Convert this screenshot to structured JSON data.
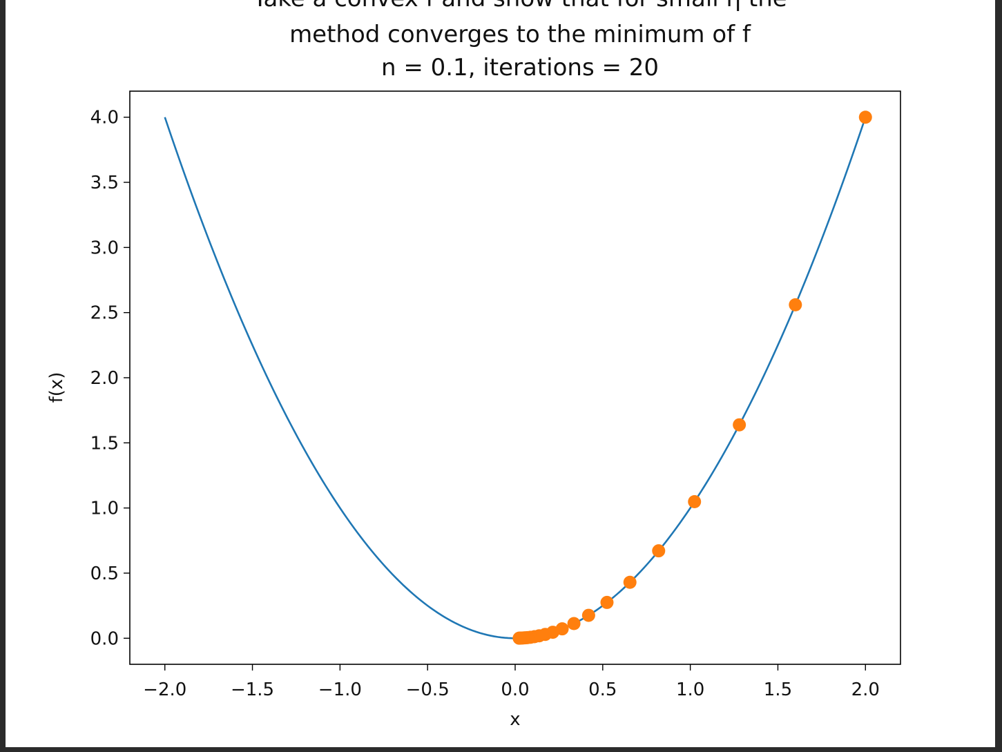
{
  "page": {
    "background": "#2b2b2b",
    "figure_background": "#ffffff"
  },
  "chart_data": {
    "type": "line",
    "title_lines": [
      "Take a convex f and show that for small η the",
      "method converges to the minimum of f",
      "n = 0.1, iterations = 20"
    ],
    "xlabel": "x",
    "ylabel": "f(x)",
    "xlim": [
      -2.2,
      2.2
    ],
    "ylim": [
      -0.2,
      4.2
    ],
    "xticks": [
      -2.0,
      -1.5,
      -1.0,
      -0.5,
      0.0,
      0.5,
      1.0,
      1.5,
      2.0
    ],
    "xtick_labels": [
      "−2.0",
      "−1.5",
      "−1.0",
      "−0.5",
      "0.0",
      "0.5",
      "1.0",
      "1.5",
      "2.0"
    ],
    "yticks": [
      0.0,
      0.5,
      1.0,
      1.5,
      2.0,
      2.5,
      3.0,
      3.5,
      4.0
    ],
    "ytick_labels": [
      "0.0",
      "0.5",
      "1.0",
      "1.5",
      "2.0",
      "2.5",
      "3.0",
      "3.5",
      "4.0"
    ],
    "grid": false,
    "series": [
      {
        "kind": "line",
        "color": "#1f77b4",
        "function": "x^2",
        "x_range": [
          -2.0,
          2.0
        ]
      },
      {
        "kind": "scatter",
        "color": "#ff7f0e",
        "x": [
          2.0,
          1.6,
          1.28,
          1.024,
          0.8192,
          0.65536,
          0.524288,
          0.41943,
          0.33554,
          0.26844,
          0.21475,
          0.1718,
          0.13744,
          0.10995,
          0.08796,
          0.07037,
          0.0563,
          0.04504,
          0.03603,
          0.02882,
          0.02306
        ],
        "y": [
          4.0,
          2.56,
          1.6384,
          1.048576,
          0.671089,
          0.429497,
          0.274878,
          0.175922,
          0.11259,
          0.072058,
          0.046117,
          0.029515,
          0.01889,
          0.01209,
          0.007737,
          0.004952,
          0.003169,
          0.002028,
          0.001298,
          0.000831,
          0.000532
        ]
      }
    ]
  }
}
